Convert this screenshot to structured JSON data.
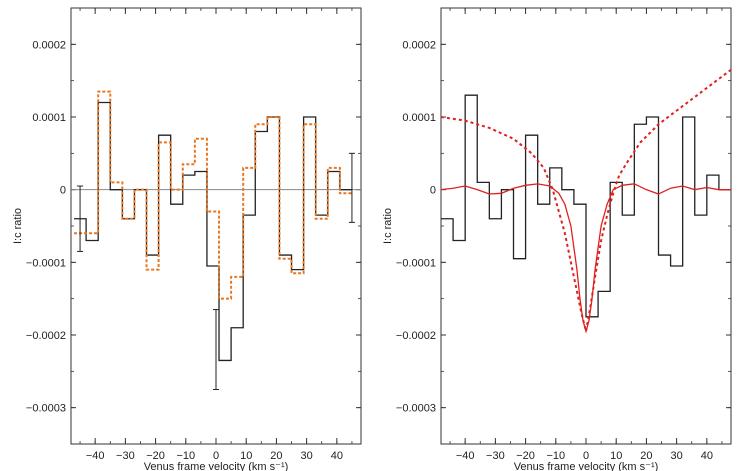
{
  "chart_data": [
    {
      "type": "line",
      "panel": "left",
      "xlabel": "Venus frame velocity (km s⁻¹)",
      "ylabel": "I:c ratio",
      "xlim": [
        -48,
        48
      ],
      "ylim": [
        -0.00035,
        0.00025
      ],
      "xticks": [
        -40,
        -30,
        -20,
        -10,
        0,
        10,
        20,
        30,
        40
      ],
      "xtick_labels": [
        "−40",
        "−30",
        "−20",
        "−10",
        "0",
        "10",
        "20",
        "30",
        "40"
      ],
      "yticks": [
        0.0002,
        0.0001,
        0,
        -0.0001,
        -0.0002,
        -0.0003
      ],
      "ytick_labels": [
        "0.0002",
        "0.0001",
        "0",
        "−0.0001",
        "−0.0002",
        "−0.0003"
      ],
      "zero_line": true,
      "bin_edges": [
        -47,
        -43,
        -39,
        -35,
        -31,
        -27,
        -23,
        -19,
        -15,
        -11,
        -7,
        -3,
        1,
        5,
        9,
        13,
        17,
        21,
        25,
        29,
        33,
        37,
        41,
        45
      ],
      "series": [
        {
          "style": "step-solid",
          "color": "#222222",
          "values": [
            -4e-05,
            -7e-05,
            0.00012,
            0.0,
            -4e-05,
            0.0,
            -9e-05,
            7.5e-05,
            -2e-05,
            2e-05,
            2.5e-05,
            -0.000105,
            -0.000235,
            -0.00019,
            -3.5e-05,
            8e-05,
            0.0001,
            -9e-05,
            -0.00011,
            0.0001,
            -3.5e-05,
            2.5e-05,
            0.0
          ]
        },
        {
          "style": "step-dotted",
          "color": "#e87722",
          "values": [
            -6e-05,
            -6e-05,
            0.000135,
            1e-05,
            -4e-05,
            0.0,
            -0.00011,
            6.5e-05,
            0.0,
            3.5e-05,
            7e-05,
            -3e-05,
            -0.00015,
            -0.00012,
            3e-05,
            9e-05,
            0.0001,
            -9.5e-05,
            -0.000115,
            9e-05,
            -4e-05,
            3e-05,
            -5e-06
          ]
        }
      ],
      "error_bars": [
        {
          "x": -45,
          "y": -4e-05,
          "low": -8.5e-05,
          "high": 5e-06
        },
        {
          "x": 0,
          "y": -0.00022,
          "low": -0.000275,
          "high": -0.000165
        },
        {
          "x": 45,
          "y": 0.0,
          "low": -4.5e-05,
          "high": 5e-05
        }
      ]
    },
    {
      "type": "line",
      "panel": "right",
      "xlabel": "Venus frame velocity (km s⁻¹)",
      "ylabel": "I:c ratio",
      "xlim": [
        -48,
        48
      ],
      "ylim": [
        -0.00035,
        0.00025
      ],
      "xticks": [
        -40,
        -30,
        -20,
        -10,
        0,
        10,
        20,
        30,
        40
      ],
      "xtick_labels": [
        "−40",
        "−30",
        "−20",
        "−10",
        "0",
        "10",
        "20",
        "30",
        "40"
      ],
      "yticks": [
        0.0002,
        0.0001,
        0,
        -0.0001,
        -0.0002,
        -0.0003
      ],
      "ytick_labels": [
        "0.0002",
        "0.0001",
        "0",
        "−0.0001",
        "−0.0002",
        "−0.0003"
      ],
      "zero_line": false,
      "bin_edges": [
        -48,
        -44,
        -40,
        -36,
        -32,
        -28,
        -24,
        -20,
        -16,
        -12,
        -8,
        -4,
        0,
        4,
        8,
        12,
        16,
        20,
        24,
        28,
        32,
        36,
        40,
        44,
        48
      ],
      "series": [
        {
          "style": "step-solid",
          "color": "#222222",
          "values": [
            -4e-05,
            -7e-05,
            0.00013,
            1e-05,
            -4e-05,
            0.0,
            -9.5e-05,
            7.5e-05,
            -2e-05,
            3e-05,
            0.0,
            -2e-05,
            -0.000175,
            -0.00014,
            1e-05,
            -3.5e-05,
            9e-05,
            0.0001,
            -9e-05,
            -0.000105,
            0.0001,
            -3.5e-05,
            2e-05,
            0.0
          ]
        },
        {
          "style": "curve-solid",
          "color": "#e02020",
          "x": [
            -48,
            -44,
            -40,
            -36,
            -32,
            -28,
            -24,
            -20,
            -16,
            -12,
            -9,
            -7,
            -5,
            -3,
            -2,
            -1,
            0,
            1,
            2,
            3,
            5,
            7,
            9,
            12,
            16,
            20,
            24,
            28,
            32,
            36,
            40,
            44,
            48
          ],
          "y": [
            0.0,
            2e-06,
            5e-06,
            0.0,
            -6e-06,
            -5e-06,
            2e-06,
            6e-06,
            8e-06,
            5e-06,
            -5e-06,
            -2e-05,
            -5e-05,
            -0.00011,
            -0.00015,
            -0.00018,
            -0.000195,
            -0.00018,
            -0.00015,
            -0.00011,
            -5e-05,
            -2e-05,
            0.0,
            6e-06,
            8e-06,
            0.0,
            -6e-06,
            2e-06,
            5e-06,
            0.0,
            3e-06,
            0.0,
            0.0
          ]
        },
        {
          "style": "curve-dotted",
          "color": "#e02020",
          "x": [
            -48,
            -40,
            -32,
            -24,
            -18,
            -14,
            -11,
            -9,
            -7,
            -5,
            -3,
            -1.5,
            0,
            1.5,
            3,
            5,
            7,
            9,
            11,
            14,
            18,
            24,
            32,
            40,
            48
          ],
          "y": [
            0.0001,
            9.5e-05,
            8.5e-05,
            7e-05,
            5e-05,
            3e-05,
            0.0,
            -3e-05,
            -6e-05,
            -0.0001,
            -0.00014,
            -0.00017,
            -0.000195,
            -0.00016,
            -0.00012,
            -7e-05,
            -3.5e-05,
            -5e-06,
            2e-05,
            4e-05,
            6.5e-05,
            9e-05,
            0.000115,
            0.00014,
            0.000165
          ]
        }
      ],
      "error_bars": []
    }
  ]
}
